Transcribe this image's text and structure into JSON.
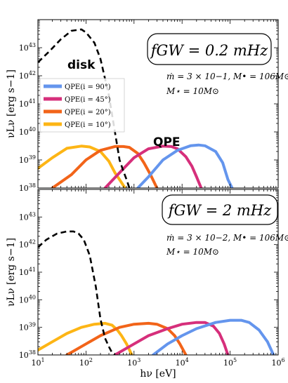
{
  "colors": {
    "disk": "#000000",
    "qpe_90": "#6495ed",
    "qpe_45": "#d62f7b",
    "qpe_20": "#f26419",
    "qpe_10": "#fdb515"
  },
  "chart_data": [
    {
      "type": "line",
      "panel": "top",
      "xlabel": "hν [eV]",
      "ylabel": "νLν [erg s−1]",
      "xscale": "log",
      "yscale": "log",
      "xlim": [
        10,
        1000000
      ],
      "ylim": [
        1e+38,
        1e+44
      ],
      "yticks": [
        "10^38",
        "10^39",
        "10^40",
        "10^41",
        "10^42",
        "10^43"
      ],
      "annotations": {
        "gw_box": "fGW = 0.2 mHz",
        "params_1": "ṁ = 3 × 10−1,  M• = 106M⊙",
        "params_2": "M⋆ = 10M⊙",
        "disk_label": "disk",
        "qpe_label": "QPE"
      },
      "legend": {
        "placement": "upper-left",
        "entries": [
          "QPE(i = 90°)",
          "QPE(i = 45°)",
          "QPE(i = 20°)",
          "QPE(i = 10°)"
        ]
      },
      "series": [
        {
          "key": "disk",
          "style": "dashed",
          "x": [
            10,
            18,
            30,
            50,
            80,
            100,
            150,
            200,
            300,
            400,
            500,
            600,
            700,
            800
          ],
          "y": [
            3e+42,
            8e+42,
            2e+43,
            4e+43,
            4.5e+43,
            3.5e+43,
            1.5e+43,
            4e+42,
            2e+41,
            1e+40,
            1e+39,
            4e+38,
            2e+38,
            1e+38
          ]
        },
        {
          "key": "qpe_90",
          "name": "QPE(i = 90°)",
          "x": [
            1200,
            2000,
            4000,
            8000,
            15000,
            22000,
            30000,
            50000,
            70000,
            90000,
            110000
          ],
          "y": [
            1e+38,
            2.5e+38,
            1e+39,
            2.2e+39,
            3.2e+39,
            3.4e+39,
            3.2e+39,
            2e+39,
            8e+38,
            2e+38,
            1e+38
          ]
        },
        {
          "key": "qpe_45",
          "name": "QPE(i = 45°)",
          "x": [
            250,
            500,
            1000,
            2000,
            4000,
            6000,
            8000,
            12000,
            16000,
            20000,
            25000
          ],
          "y": [
            1e+38,
            3.5e+38,
            1.2e+39,
            2.5e+39,
            3.1e+39,
            3e+39,
            2.5e+39,
            1.3e+39,
            6e+38,
            2.5e+38,
            1e+38
          ]
        },
        {
          "key": "qpe_20",
          "name": "QPE(i = 20°)",
          "x": [
            20,
            50,
            100,
            200,
            400,
            600,
            800,
            1200,
            1600,
            2200,
            3000
          ],
          "y": [
            1e+38,
            3e+38,
            1e+39,
            2.2e+39,
            3e+39,
            3e+39,
            2.8e+39,
            1.7e+39,
            8e+38,
            3e+38,
            1e+38
          ]
        },
        {
          "key": "qpe_10",
          "name": "QPE(i = 10°)",
          "x": [
            10,
            20,
            40,
            80,
            120,
            200,
            300,
            400,
            500,
            650
          ],
          "y": [
            5e+38,
            1.2e+39,
            2.6e+39,
            3.1e+39,
            2.9e+39,
            2e+39,
            9e+38,
            3.5e+38,
            2e+38,
            1e+38
          ]
        }
      ]
    },
    {
      "type": "line",
      "panel": "bottom",
      "xlabel": "hν [eV]",
      "ylabel": "νLν [erg s−1]",
      "xscale": "log",
      "yscale": "log",
      "xlim": [
        10,
        1000000
      ],
      "ylim": [
        1e+38,
        1e+44
      ],
      "xticks": [
        "10^1",
        "10^2",
        "10^3",
        "10^4",
        "10^5",
        "10^6"
      ],
      "yticks": [
        "10^38",
        "10^39",
        "10^40",
        "10^41",
        "10^42",
        "10^43"
      ],
      "annotations": {
        "gw_box": "fGW = 2 mHz",
        "params_1": "ṁ = 3 × 10−2,  M• = 106M⊙",
        "params_2": "M⋆ = 10M⊙"
      },
      "series": [
        {
          "key": "disk",
          "style": "dashed",
          "x": [
            10,
            15,
            25,
            40,
            55,
            70,
            90,
            120,
            160,
            200,
            250,
            300,
            350,
            400
          ],
          "y": [
            8e+41,
            1.5e+42,
            2.5e+42,
            3e+42,
            3e+42,
            2.5e+42,
            1.5e+42,
            4e+41,
            3e+40,
            2e+39,
            4e+38,
            2e+38,
            1.2e+38,
            1e+38
          ]
        },
        {
          "key": "qpe_90",
          "name": "QPE(i = 90°)",
          "x": [
            2500,
            5000,
            10000,
            20000,
            50000,
            100000,
            170000,
            250000,
            400000,
            600000,
            800000
          ],
          "y": [
            1e+38,
            2.5e+38,
            5e+38,
            9e+38,
            1.5e+39,
            1.8e+39,
            1.8e+39,
            1.5e+39,
            8e+38,
            3e+38,
            1e+38
          ]
        },
        {
          "key": "qpe_45",
          "name": "QPE(i = 45°)",
          "x": [
            400,
            1000,
            2000,
            5000,
            10000,
            20000,
            30000,
            45000,
            60000,
            75000,
            90000
          ],
          "y": [
            1e+38,
            2.5e+38,
            5e+38,
            9e+38,
            1.3e+39,
            1.5e+39,
            1.5e+39,
            1.1e+39,
            6e+38,
            2.5e+38,
            1e+38
          ]
        },
        {
          "key": "qpe_20",
          "name": "QPE(i = 20°)",
          "x": [
            40,
            100,
            200,
            500,
            1000,
            2000,
            3000,
            5000,
            7000,
            9000,
            12000
          ],
          "y": [
            1e+38,
            2.5e+38,
            5e+38,
            1e+39,
            1.3e+39,
            1.4e+39,
            1.3e+39,
            9e+38,
            5e+38,
            2.5e+38,
            1e+38
          ]
        },
        {
          "key": "qpe_10",
          "name": "QPE(i = 10°)",
          "x": [
            10,
            20,
            40,
            80,
            150,
            250,
            350,
            450,
            550,
            700,
            900
          ],
          "y": [
            1.5e+38,
            3e+38,
            6e+38,
            1e+39,
            1.3e+39,
            1.4e+39,
            1.2e+39,
            8e+38,
            5e+38,
            2.5e+38,
            1e+38
          ]
        }
      ]
    }
  ]
}
